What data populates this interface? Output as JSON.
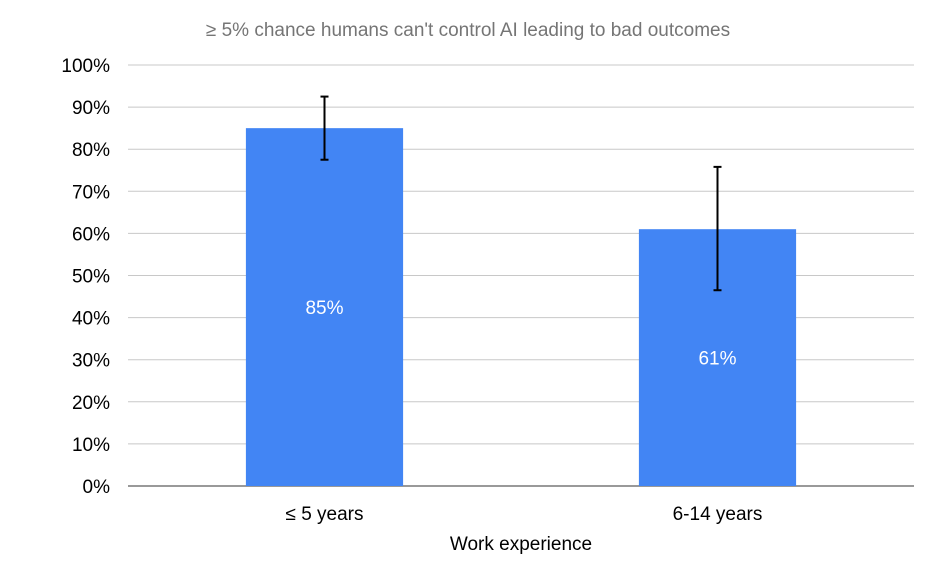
{
  "chart_data": {
    "type": "bar",
    "title": "≥ 5% chance humans can't control AI leading to bad outcomes",
    "xlabel": "Work experience",
    "ylabel": "",
    "categories": [
      "≤ 5 years",
      "6-14 years"
    ],
    "values": [
      85,
      61
    ],
    "data_labels": [
      "85%",
      "61%"
    ],
    "error_bars": [
      {
        "low": 77.5,
        "high": 92.5
      },
      {
        "low": 46.5,
        "high": 75.8
      }
    ],
    "ylim": [
      0,
      100
    ],
    "yticks": [
      0,
      10,
      20,
      30,
      40,
      50,
      60,
      70,
      80,
      90,
      100
    ],
    "ytick_labels": [
      "0%",
      "10%",
      "20%",
      "30%",
      "40%",
      "50%",
      "60%",
      "70%",
      "80%",
      "90%",
      "100%"
    ],
    "grid": true,
    "legend": "none",
    "bar_color": "#4285f4"
  }
}
